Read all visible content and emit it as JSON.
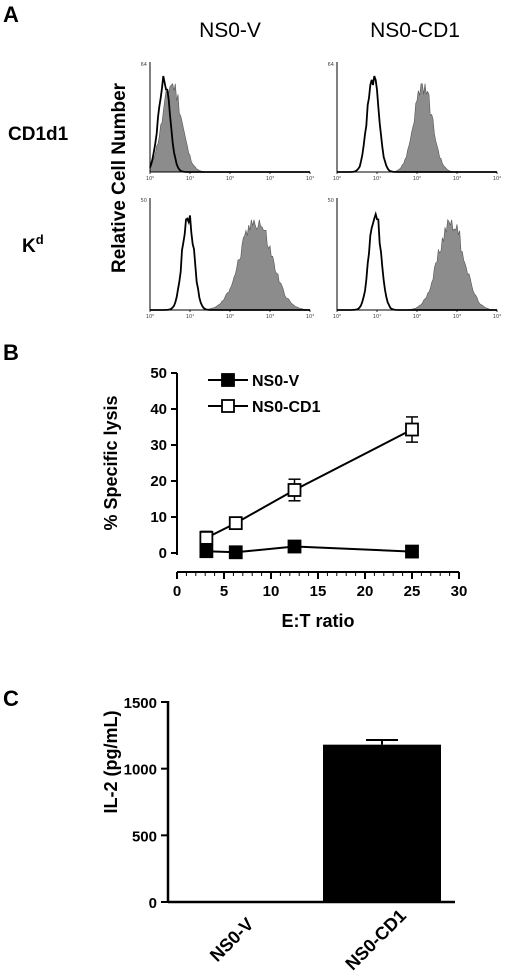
{
  "panels": {
    "a": {
      "label": "A"
    },
    "b": {
      "label": "B"
    },
    "c": {
      "label": "C"
    }
  },
  "chart_data": [
    {
      "type": "histogram",
      "panel": "A",
      "columns": [
        "NS0-V",
        "NS0-CD1"
      ],
      "rows": [
        {
          "label": "CD1d1",
          "sup": ""
        },
        {
          "label": "K",
          "sup": "d"
        }
      ],
      "ylabel": "Relative Cell Number",
      "xscale": "log",
      "xticks": [
        "10⁰",
        "10¹",
        "10²",
        "10³",
        "10⁴"
      ],
      "fill_color": "#8c8c8c",
      "outline_color": "#000000",
      "plots": [
        {
          "row": "CD1d1",
          "column": "NS0-V",
          "ymax_label": "64",
          "open_peak_decade": 0.35,
          "filled_peak_decade": 0.55,
          "filled_width": 0.34
        },
        {
          "row": "CD1d1",
          "column": "NS0-CD1",
          "ymax_label": "64",
          "open_peak_decade": 0.9,
          "filled_peak_decade": 2.15,
          "filled_width": 0.32
        },
        {
          "row": "K",
          "column": "NS0-V",
          "ymax_label": "50",
          "open_peak_decade": 0.95,
          "filled_peak_decade": 2.65,
          "filled_width": 0.55
        },
        {
          "row": "K",
          "column": "NS0-CD1",
          "ymax_label": "50",
          "open_peak_decade": 0.95,
          "filled_peak_decade": 2.85,
          "filled_width": 0.45
        }
      ]
    },
    {
      "type": "line",
      "panel": "B",
      "xlabel": "E:T ratio",
      "ylabel": "% Specific lysis",
      "xlim": [
        0,
        30
      ],
      "ylim": [
        0,
        50
      ],
      "xticks": [
        0,
        5,
        10,
        15,
        20,
        25,
        30
      ],
      "yticks": [
        0,
        10,
        20,
        30,
        40,
        50
      ],
      "legend_position": "top-left",
      "series": [
        {
          "name": "NS0-V",
          "marker": "filled-square",
          "x": [
            3.125,
            6.25,
            12.5,
            25
          ],
          "y": [
            0.5,
            0.2,
            1.8,
            0.4
          ],
          "err": [
            0.5,
            0.4,
            0.6,
            0.5
          ]
        },
        {
          "name": "NS0-CD1",
          "marker": "open-square",
          "x": [
            3.125,
            6.25,
            12.5,
            25
          ],
          "y": [
            4.2,
            8.3,
            17.5,
            34.3
          ],
          "err": [
            1.8,
            1.6,
            3.0,
            3.5
          ]
        }
      ]
    },
    {
      "type": "bar",
      "panel": "C",
      "categories": [
        "NS0-V",
        "NS0-CD1"
      ],
      "values": [
        0,
        1180
      ],
      "errors": [
        0,
        35
      ],
      "ylabel": "IL-2 (pg/mL)",
      "ylim": [
        0,
        1500
      ],
      "yticks": [
        0,
        500,
        1000,
        1500
      ],
      "bar_color": "#000000"
    }
  ]
}
